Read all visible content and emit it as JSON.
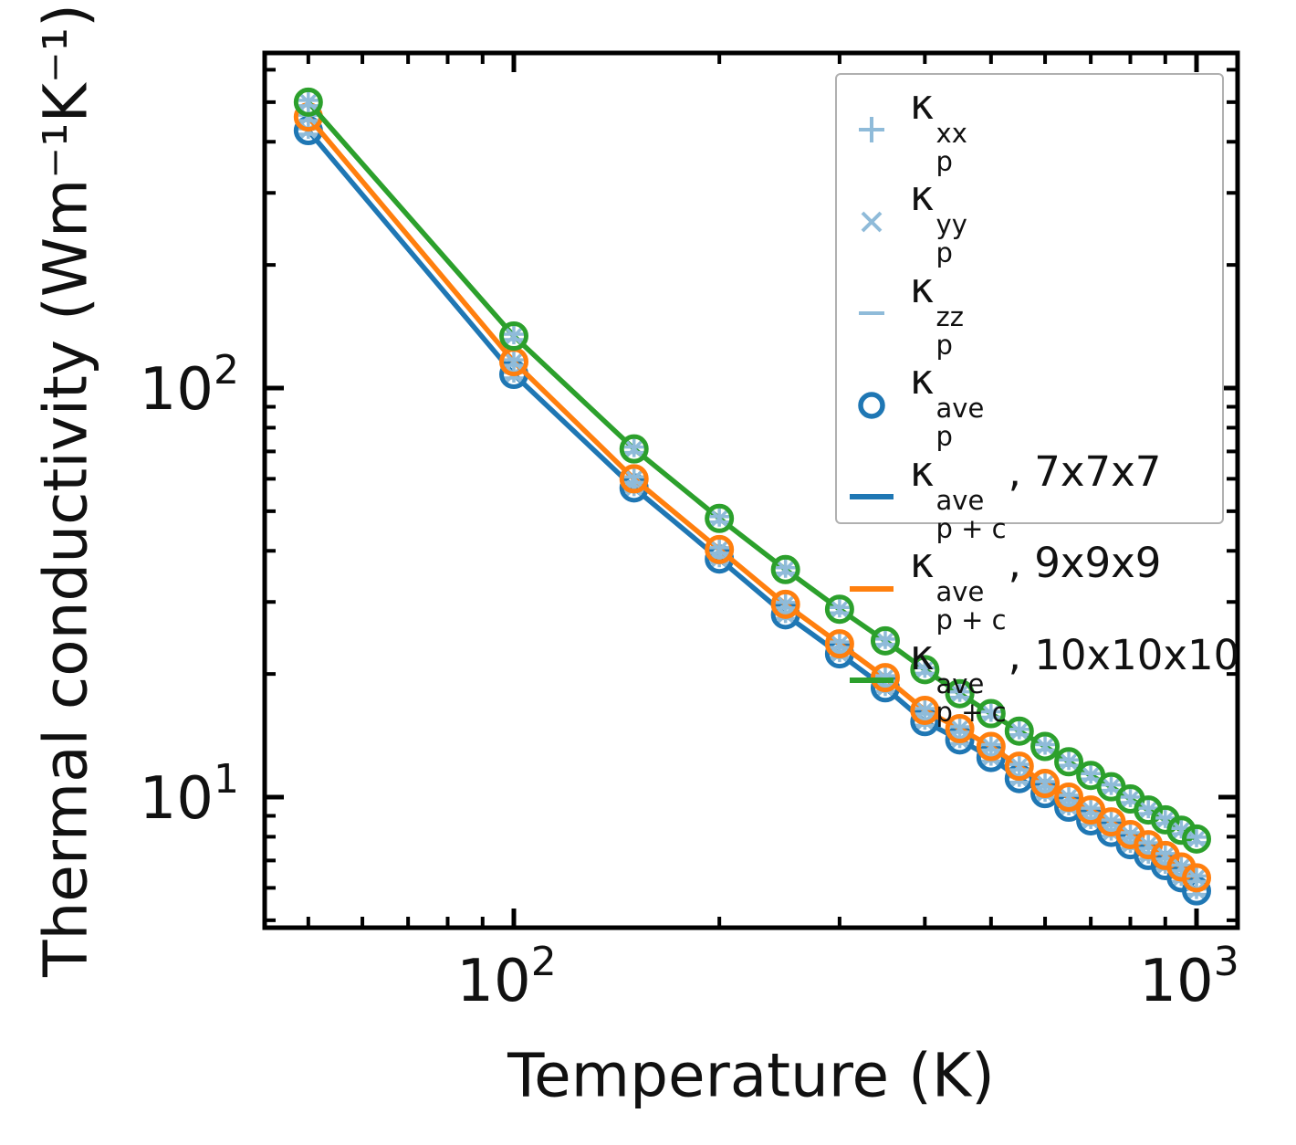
{
  "chart_data": {
    "type": "line",
    "x_scale": "log",
    "y_scale": "log",
    "x": [
      50,
      100,
      150,
      200,
      250,
      300,
      350,
      400,
      450,
      500,
      550,
      600,
      650,
      700,
      750,
      800,
      850,
      900,
      950,
      1000
    ],
    "xlim": [
      43,
      1135
    ],
    "ylim": [
      4.8,
      660
    ],
    "grid": false,
    "series": [
      {
        "name": "κ_p+c^ave, 7x7x7",
        "color": "#1f77b4",
        "values": [
          426,
          108,
          57,
          38.2,
          27.9,
          22.4,
          18.5,
          15.3,
          13.8,
          12.5,
          11.1,
          10.2,
          9.45,
          8.75,
          8.2,
          7.65,
          7.2,
          6.8,
          6.35,
          5.9
        ]
      },
      {
        "name": "κ_p+c^ave, 9x9x9",
        "color": "#ff7f0e",
        "values": [
          460,
          116,
          60,
          40.3,
          29.6,
          23.7,
          19.6,
          16.3,
          14.7,
          13.3,
          11.9,
          10.8,
          10.0,
          9.3,
          8.7,
          8.1,
          7.65,
          7.2,
          6.75,
          6.35
        ]
      },
      {
        "name": "κ_p+c^ave, 10x10x10",
        "color": "#2ca02c",
        "values": [
          500,
          134,
          71,
          48,
          36,
          28.8,
          24.1,
          20.5,
          17.9,
          16.0,
          14.5,
          13.3,
          12.2,
          11.3,
          10.6,
          9.9,
          9.3,
          8.8,
          8.3,
          7.9
        ]
      }
    ],
    "kp_point_markers": {
      "description": "κ_p^xx (+), κ_p^yy (×), κ_p^zz (−) in light blue and κ_p^ave (open circle, line color) drawn at every data point of each series; visually coincident with the lines",
      "component_color": "#8fbbd9",
      "shapes": [
        "plus",
        "cross",
        "hline",
        "circle"
      ]
    },
    "x_axis": {
      "label": "Temperature (K)",
      "major_ticks": [
        {
          "value": 100,
          "label": "10^2"
        },
        {
          "value": 1000,
          "label": "10^3"
        }
      ],
      "minor_ticks": [
        50,
        60,
        70,
        80,
        90,
        200,
        300,
        400,
        500,
        600,
        700,
        800,
        900
      ]
    },
    "y_axis": {
      "label": "Thermal conductivity (Wm⁻¹K⁻¹)",
      "major_ticks": [
        {
          "value": 100,
          "label": "10^2"
        },
        {
          "value": 10,
          "label": "10^1"
        }
      ],
      "minor_ticks": [
        600,
        500,
        400,
        300,
        200,
        90,
        80,
        70,
        60,
        50,
        40,
        30,
        20,
        9,
        8,
        7,
        6,
        5
      ]
    },
    "legend": {
      "position": "upper right",
      "items": [
        {
          "marker": "plus",
          "color": "#8fbbd9",
          "base": "κ",
          "sup": "xx",
          "sub": "p",
          "suffix": ""
        },
        {
          "marker": "cross",
          "color": "#8fbbd9",
          "base": "κ",
          "sup": "yy",
          "sub": "p",
          "suffix": ""
        },
        {
          "marker": "hline",
          "color": "#8fbbd9",
          "base": "κ",
          "sup": "zz",
          "sub": "p",
          "suffix": ""
        },
        {
          "marker": "circle",
          "color": "#1f77b4",
          "base": "κ",
          "sup": "ave",
          "sub": "p",
          "suffix": ""
        },
        {
          "marker": "line",
          "color": "#1f77b4",
          "base": "κ",
          "sup": "ave",
          "sub": "p + c",
          "suffix": ", 7x7x7"
        },
        {
          "marker": "line",
          "color": "#ff7f0e",
          "base": "κ",
          "sup": "ave",
          "sub": "p + c",
          "suffix": ", 9x9x9"
        },
        {
          "marker": "line",
          "color": "#2ca02c",
          "base": "κ",
          "sup": "ave",
          "sub": "p + c",
          "suffix": ", 10x10x10"
        }
      ]
    },
    "colors": {
      "frame": "#000000",
      "tick_label": "#111111",
      "legend_border": "#b0b0b0"
    }
  }
}
